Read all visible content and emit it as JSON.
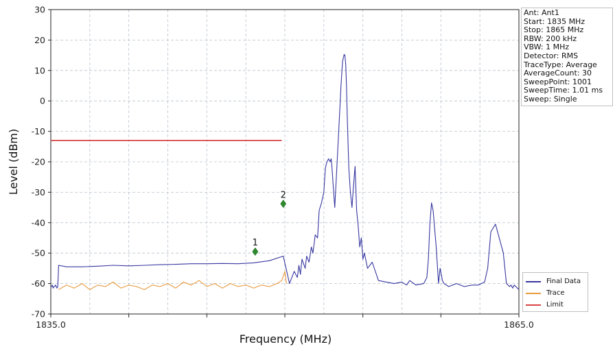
{
  "chart_data": {
    "type": "line",
    "xlabel": "Frequency (MHz)",
    "ylabel": "Level (dBm)",
    "xlim": [
      1835.0,
      1865.0
    ],
    "ylim": [
      -70,
      30
    ],
    "x_tick_labels": [
      "1835.0",
      "1865.0"
    ],
    "y_ticks": [
      -70,
      -60,
      -50,
      -40,
      -30,
      -20,
      -10,
      0,
      10,
      20,
      30
    ],
    "grid": true,
    "legend_placement": "bottom-right",
    "series": [
      {
        "name": "Final Data",
        "color": "#3535a0",
        "x": [
          1835.0,
          1835.05,
          1835.1,
          1835.15,
          1835.2,
          1835.25,
          1835.3,
          1835.35,
          1835.4,
          1835.45,
          1835.5,
          1836.0,
          1837.0,
          1838.0,
          1839.0,
          1840.0,
          1841.0,
          1842.0,
          1843.0,
          1844.0,
          1845.0,
          1846.0,
          1847.0,
          1848.0,
          1849.0,
          1849.9,
          1850.3,
          1850.6,
          1850.8,
          1850.9,
          1851.0,
          1851.1,
          1851.3,
          1851.4,
          1851.55,
          1851.7,
          1851.8,
          1851.95,
          1852.1,
          1852.2,
          1852.35,
          1852.5,
          1852.6,
          1852.7,
          1852.8,
          1852.9,
          1852.97,
          1853.02,
          1853.1,
          1853.2,
          1853.35,
          1853.5,
          1853.6,
          1853.7,
          1853.8,
          1853.85,
          1853.9,
          1853.95,
          1854.0,
          1854.1,
          1854.2,
          1854.3,
          1854.4,
          1854.5,
          1854.6,
          1854.7,
          1854.8,
          1854.9,
          1855.0,
          1855.1,
          1855.3,
          1855.6,
          1856.0,
          1856.5,
          1857.0,
          1857.5,
          1857.8,
          1858.0,
          1858.4,
          1858.9,
          1859.1,
          1859.2,
          1859.3,
          1859.4,
          1859.5,
          1859.7,
          1859.85,
          1859.95,
          1860.1,
          1860.2,
          1860.5,
          1861.0,
          1861.5,
          1862.0,
          1862.4,
          1862.8,
          1863.0,
          1863.2,
          1863.5,
          1864.0,
          1864.2,
          1864.4,
          1864.5,
          1864.6,
          1864.7,
          1864.8,
          1865.0
        ],
        "values": [
          -61,
          -61,
          -60.5,
          -61.5,
          -61,
          -61,
          -60.5,
          -61,
          -61.5,
          -61,
          -54,
          -54.5,
          -54.5,
          -54.3,
          -54,
          -54.2,
          -54,
          -53.8,
          -53.7,
          -53.5,
          -53.5,
          -53.4,
          -53.5,
          -53.2,
          -52.5,
          -51,
          -60,
          -56,
          -58,
          -54,
          -57,
          -52,
          -55,
          -51,
          -53,
          -48,
          -50,
          -44,
          -45,
          -36,
          -33.5,
          -30,
          -22,
          -20,
          -19,
          -20,
          -19,
          -22,
          -28,
          -35,
          -20,
          -5,
          5,
          13,
          15.3,
          15,
          12,
          5,
          -5,
          -22,
          -30,
          -35,
          -28,
          -21.5,
          -36,
          -41,
          -48,
          -45,
          -52,
          -50,
          -55,
          -53,
          -59,
          -59.5,
          -60,
          -59.5,
          -60.5,
          -59,
          -60.5,
          -60,
          -58,
          -52,
          -40,
          -33.5,
          -36,
          -48,
          -60,
          -55,
          -59,
          -60,
          -61,
          -60,
          -61,
          -60.5,
          -60.5,
          -59.5,
          -55,
          -43,
          -40.5,
          -50,
          -60,
          -61,
          -60.5,
          -61.5,
          -60.5,
          -61,
          -62
        ]
      },
      {
        "name": "Trace",
        "color": "#e89a3c",
        "x": [
          1835.5,
          1836.0,
          1836.5,
          1837.0,
          1837.5,
          1838.0,
          1838.5,
          1839.0,
          1839.5,
          1840.0,
          1840.5,
          1841.0,
          1841.5,
          1842.0,
          1842.5,
          1843.0,
          1843.5,
          1844.0,
          1844.5,
          1845.0,
          1845.5,
          1846.0,
          1846.5,
          1847.0,
          1847.5,
          1848.0,
          1848.5,
          1849.0,
          1849.5,
          1849.8,
          1850.0,
          1850.1
        ],
        "values": [
          -62,
          -60.5,
          -61.5,
          -60,
          -62,
          -60.5,
          -61,
          -59.5,
          -61.5,
          -60.5,
          -61,
          -62,
          -60.5,
          -61,
          -60,
          -61.5,
          -59.5,
          -60.5,
          -59,
          -61,
          -60,
          -61.5,
          -60,
          -61,
          -60.5,
          -61.5,
          -60.5,
          -61,
          -60,
          -59,
          -56,
          -60
        ]
      },
      {
        "name": "Limit",
        "color": "#d94343",
        "x": [
          1835.0,
          1849.8
        ],
        "values": [
          -13,
          -13
        ]
      }
    ],
    "markers": [
      {
        "label": "1",
        "x": 1848.1,
        "y": -49.5,
        "color": "#2d8a2d"
      },
      {
        "label": "2",
        "x": 1849.9,
        "y": -33.8,
        "color": "#2d8a2d"
      }
    ]
  },
  "info_panel": [
    "Ant: Ant1",
    "Start: 1835 MHz",
    "Stop: 1865 MHz",
    "RBW: 200 kHz",
    "VBW: 1 MHz",
    "Detector: RMS",
    "TraceType: Average",
    "AverageCount: 30",
    "SweepPoint: 1001",
    "SweepTime: 1.01 ms",
    "Sweep: Single"
  ]
}
